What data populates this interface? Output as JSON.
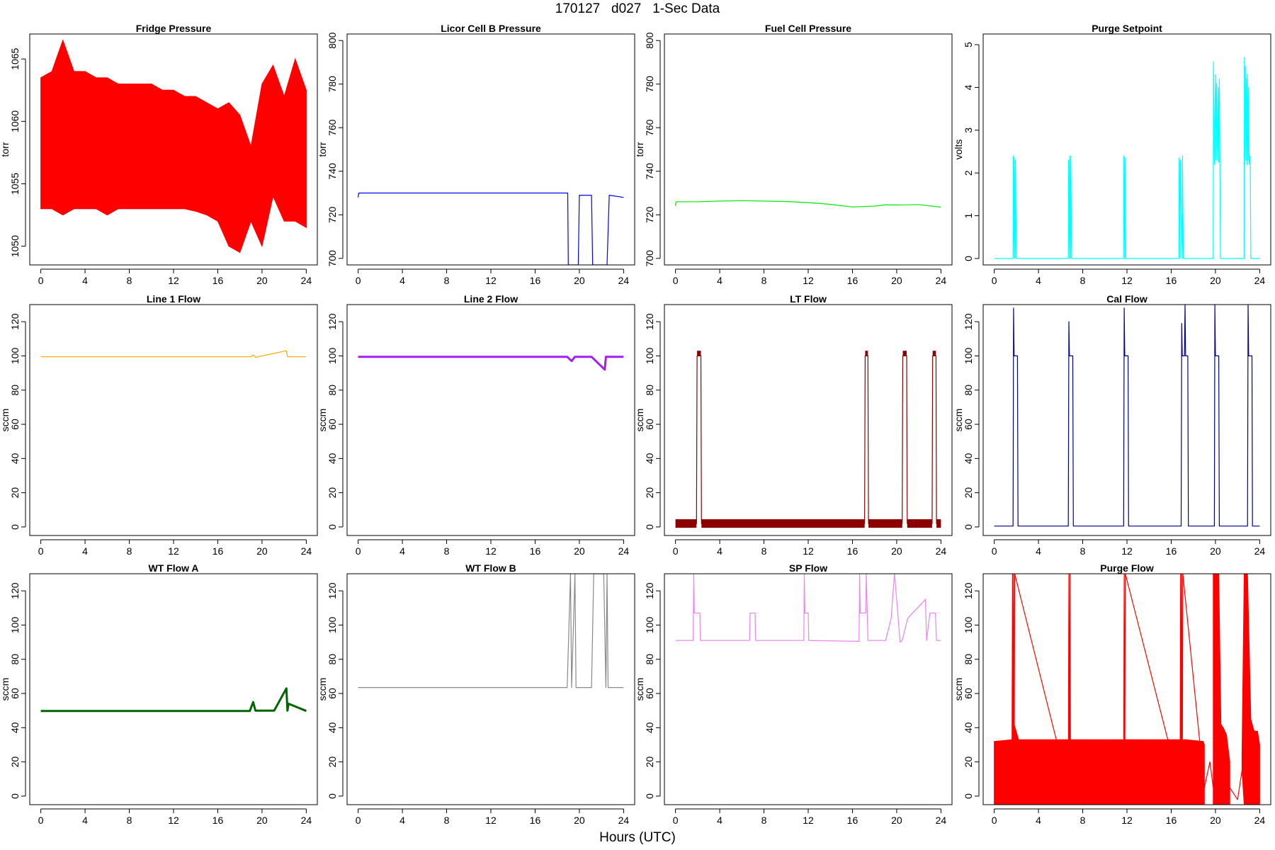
{
  "page": {
    "title": "170127   d027   1-Sec Data",
    "xlabel": "Hours (UTC)"
  },
  "chart_data": [
    {
      "type": "line",
      "title": "Fridge Pressure",
      "xlabel": "",
      "ylabel": "torr",
      "color": "#ff0000",
      "xlim": [
        -1,
        25
      ],
      "ylim": [
        1048.5,
        1067
      ],
      "xticks": [
        0,
        4,
        8,
        12,
        16,
        20,
        24
      ],
      "yticks": [
        1050,
        1055,
        1060,
        1065
      ],
      "series": [
        {
          "style": "band",
          "x": [
            0.0,
            1,
            2,
            3,
            4,
            5,
            6,
            7,
            8,
            9,
            10,
            11,
            12,
            13,
            14,
            15,
            16,
            17,
            18,
            19,
            20,
            21,
            22,
            23,
            24
          ],
          "ymin": [
            1053,
            1053,
            1052.5,
            1053,
            1053,
            1053,
            1052.5,
            1053,
            1053,
            1053,
            1053,
            1053,
            1053,
            1053,
            1052.8,
            1052.5,
            1052,
            1050,
            1049.5,
            1052,
            1050,
            1054,
            1052,
            1052,
            1051.5
          ],
          "ymax": [
            1063.5,
            1064,
            1066.5,
            1064,
            1064,
            1063.5,
            1063.5,
            1063,
            1063,
            1063,
            1063,
            1062.5,
            1062.5,
            1062,
            1062,
            1061.5,
            1061,
            1061.5,
            1060.5,
            1058,
            1063,
            1064.5,
            1062,
            1065,
            1062.5
          ]
        }
      ]
    },
    {
      "type": "line",
      "title": "Licor Cell B Pressure",
      "xlabel": "",
      "ylabel": "torr",
      "color": "#0000ff",
      "xlim": [
        -1,
        25
      ],
      "ylim": [
        697,
        803
      ],
      "xticks": [
        0,
        4,
        8,
        12,
        16,
        20,
        24
      ],
      "yticks": [
        700,
        720,
        740,
        760,
        780,
        800
      ],
      "series": [
        {
          "style": "line",
          "x": [
            0,
            0.05,
            18.95,
            19.0,
            19.05,
            19.9,
            20.0,
            21.1,
            21.2,
            21.3,
            22.5,
            22.7,
            24.0
          ],
          "y": [
            728,
            730,
            730,
            697,
            697,
            697,
            729,
            729,
            697,
            697,
            697,
            729,
            728
          ]
        }
      ]
    },
    {
      "type": "line",
      "title": "Fuel Cell Pressure",
      "xlabel": "",
      "ylabel": "torr",
      "color": "#00ee00",
      "xlim": [
        -1,
        25
      ],
      "ylim": [
        697,
        803
      ],
      "xticks": [
        0,
        4,
        8,
        12,
        16,
        20,
        24
      ],
      "yticks": [
        700,
        720,
        740,
        760,
        780,
        800
      ],
      "series": [
        {
          "style": "line",
          "x": [
            0,
            0.05,
            2,
            4,
            6,
            8,
            10,
            12,
            14,
            16,
            18,
            19,
            20,
            22,
            24
          ],
          "y": [
            724,
            726,
            726,
            726.3,
            726.5,
            726.3,
            726.1,
            725.6,
            724.8,
            723.6,
            724,
            724.6,
            724.5,
            724.7,
            723.5
          ]
        }
      ]
    },
    {
      "type": "line",
      "title": "Purge Setpoint",
      "xlabel": "",
      "ylabel": "volts",
      "color": "#00ffff",
      "xlim": [
        -1,
        25
      ],
      "ylim": [
        -0.15,
        5.25
      ],
      "xticks": [
        0,
        4,
        8,
        12,
        16,
        20,
        24
      ],
      "yticks": [
        0,
        1,
        2,
        3,
        4,
        5
      ],
      "series": [
        {
          "style": "line",
          "x": [
            0,
            1.7,
            1.72,
            1.8,
            1.82,
            1.9,
            1.92,
            2.0,
            2.02,
            6.7,
            6.72,
            6.8,
            6.82,
            6.9,
            6.92,
            7.0,
            7.02,
            11.7,
            11.72,
            11.8,
            11.82,
            11.9,
            11.92,
            16.7,
            16.72,
            16.8,
            16.82,
            17.0,
            17.02,
            17.1,
            17.12,
            19.8,
            19.82,
            19.9,
            20.0,
            20.05,
            20.1,
            20.2,
            20.25,
            20.3,
            20.35,
            20.4,
            20.45,
            22.6,
            22.62,
            22.65,
            22.7,
            22.75,
            22.8,
            22.85,
            22.9,
            22.95,
            23.0,
            23.05,
            23.1,
            23.15,
            23.2,
            24.0
          ],
          "y": [
            0,
            0,
            2.4,
            0,
            2.35,
            0,
            2.3,
            0,
            0,
            0,
            2.3,
            0,
            2.4,
            0,
            2.4,
            0,
            0,
            0,
            2.4,
            0,
            2.35,
            0,
            0,
            0,
            2.35,
            0,
            2.3,
            0,
            2.4,
            0,
            0,
            0,
            4.6,
            2.2,
            4.3,
            2.3,
            4.1,
            2.3,
            4.0,
            2.25,
            4.2,
            2.3,
            0,
            0,
            4.7,
            2.2,
            4.5,
            2.3,
            4.2,
            2.2,
            4.3,
            2.3,
            4.0,
            2.2,
            2.4,
            2.2,
            0,
            0
          ]
        }
      ]
    },
    {
      "type": "line",
      "title": "Line 1 Flow",
      "xlabel": "",
      "ylabel": "sccm",
      "color": "#ffa500",
      "xlim": [
        -1,
        25
      ],
      "ylim": [
        -5,
        130
      ],
      "xticks": [
        0,
        4,
        8,
        12,
        16,
        20,
        24
      ],
      "yticks": [
        0,
        20,
        40,
        60,
        80,
        100,
        120
      ],
      "series": [
        {
          "style": "line",
          "x": [
            0,
            19.0,
            19.2,
            19.4,
            22.2,
            22.3,
            24
          ],
          "y": [
            99.5,
            99.5,
            100.5,
            99.2,
            103,
            99.5,
            99.5
          ]
        }
      ]
    },
    {
      "type": "line",
      "title": "Line 2 Flow",
      "xlabel": "",
      "ylabel": "sccm",
      "color": "#a020f0",
      "xlabel2": "",
      "xlim": [
        -1,
        25
      ],
      "ylim": [
        -5,
        130
      ],
      "xticks": [
        0,
        4,
        8,
        12,
        16,
        20,
        24
      ],
      "yticks": [
        0,
        20,
        40,
        60,
        80,
        100,
        120
      ],
      "series": [
        {
          "style": "line",
          "x": [
            0,
            18.9,
            19.3,
            19.6,
            20.0,
            21.1,
            22.3,
            22.4,
            24
          ],
          "y": [
            99.5,
            99.5,
            97,
            99.5,
            99.5,
            99.5,
            92,
            99.5,
            99.5
          ]
        }
      ]
    },
    {
      "type": "line",
      "title": "LT Flow",
      "xlabel": "",
      "ylabel": "sccm",
      "color": "#8b0000",
      "xlim": [
        -1,
        25
      ],
      "ylim": [
        -5,
        130
      ],
      "xticks": [
        0,
        4,
        8,
        12,
        16,
        20,
        24
      ],
      "yticks": [
        0,
        20,
        40,
        60,
        80,
        100,
        120
      ],
      "series": [
        {
          "style": "line",
          "x": [
            0,
            1.9,
            1.95,
            2.3,
            2.35,
            17.1,
            17.15,
            17.4,
            17.45,
            20.5,
            20.55,
            20.9,
            20.95,
            23.2,
            23.25,
            23.55,
            23.6,
            24
          ],
          "y": [
            2,
            2,
            100,
            100,
            2,
            2,
            100,
            100,
            2,
            2,
            100,
            100,
            2,
            2,
            100,
            100,
            2,
            2
          ]
        }
      ]
    },
    {
      "type": "line",
      "title": "Cal Flow",
      "xlabel": "",
      "ylabel": "sccm",
      "color": "#00008b",
      "xlim": [
        -1,
        25
      ],
      "ylim": [
        -5,
        130
      ],
      "xticks": [
        0,
        4,
        8,
        12,
        16,
        20,
        24
      ],
      "yticks": [
        0,
        20,
        40,
        60,
        80,
        100,
        120
      ],
      "series": [
        {
          "style": "line",
          "x": [
            0,
            1.7,
            1.75,
            1.8,
            2.1,
            2.15,
            6.7,
            6.75,
            6.8,
            7.1,
            7.15,
            11.7,
            11.75,
            11.8,
            12.1,
            12.15,
            16.9,
            16.95,
            17.0,
            17.2,
            17.25,
            17.3,
            17.5,
            17.55,
            19.9,
            19.95,
            20.0,
            20.3,
            20.35,
            22.9,
            22.95,
            23.0,
            23.3,
            23.35,
            24
          ],
          "y": [
            0.5,
            0.5,
            128,
            100,
            100,
            0.5,
            0.5,
            120,
            100,
            100,
            0.5,
            0.5,
            128,
            100,
            100,
            0.5,
            0.5,
            119,
            100,
            100,
            130,
            100,
            100,
            0.5,
            0.5,
            130,
            100,
            100,
            0.5,
            0.5,
            130,
            100,
            100,
            0.5,
            0.5
          ]
        }
      ]
    },
    {
      "type": "line",
      "title": "WT Flow A",
      "xlabel": "",
      "ylabel": "sccm",
      "color": "#006400",
      "xlim": [
        -1,
        25
      ],
      "ylim": [
        -5,
        130
      ],
      "xticks": [
        0,
        4,
        8,
        12,
        16,
        20,
        24
      ],
      "yticks": [
        0,
        20,
        40,
        60,
        80,
        100,
        120
      ],
      "series": [
        {
          "style": "line",
          "x": [
            0,
            18.9,
            19.2,
            19.4,
            20.2,
            21.1,
            22.2,
            22.3,
            22.4,
            24
          ],
          "y": [
            49.8,
            49.8,
            55,
            50,
            50,
            50,
            63,
            50,
            54,
            49.8
          ]
        }
      ]
    },
    {
      "type": "line",
      "title": "WT Flow B",
      "xlabel": "",
      "ylabel": "sccm",
      "color": "#888888",
      "xlim": [
        -1,
        25
      ],
      "ylim": [
        -5,
        130
      ],
      "xticks": [
        0,
        4,
        8,
        12,
        16,
        20,
        24
      ],
      "yticks": [
        0,
        20,
        40,
        60,
        80,
        100,
        120
      ],
      "series": [
        {
          "style": "line",
          "x": [
            0,
            18.9,
            19.2,
            19.3,
            19.6,
            19.7,
            21.1,
            21.3,
            22.2,
            22.4,
            22.5,
            22.6,
            22.7,
            24
          ],
          "y": [
            63.5,
            63.5,
            130,
            63.5,
            130,
            63.5,
            63.5,
            130,
            130,
            63.5,
            130,
            63.5,
            63.5,
            63.5
          ]
        }
      ]
    },
    {
      "type": "line",
      "title": "SP Flow",
      "xlabel": "",
      "ylabel": "sccm",
      "color": "#ee82ee",
      "xlim": [
        -1,
        25
      ],
      "ylim": [
        -5,
        130
      ],
      "xticks": [
        0,
        4,
        8,
        12,
        16,
        20,
        24
      ],
      "yticks": [
        0,
        20,
        40,
        60,
        80,
        100,
        120
      ],
      "series": [
        {
          "style": "line",
          "x": [
            0,
            1.6,
            1.65,
            1.7,
            2.2,
            2.25,
            6.7,
            6.75,
            6.8,
            7.2,
            7.25,
            11.6,
            11.65,
            11.7,
            12.0,
            12.05,
            16.6,
            16.65,
            16.7,
            17.2,
            17.25,
            17.4,
            19.0,
            19.5,
            19.8,
            20.1,
            20.3,
            20.5,
            21.0,
            22.6,
            22.7,
            23.0,
            23.5,
            23.6,
            24
          ],
          "y": [
            91,
            91,
            130,
            107,
            107,
            91,
            91,
            107,
            107,
            107,
            91,
            91,
            130,
            107,
            107,
            91,
            90.5,
            130,
            107,
            107,
            130,
            91,
            91,
            104,
            130,
            107,
            90,
            91,
            104,
            115,
            91,
            107,
            107,
            91,
            91
          ]
        }
      ]
    },
    {
      "type": "line",
      "title": "Purge Flow",
      "xlabel": "",
      "ylabel": "sccm",
      "color": "#ff0000",
      "xlim": [
        -1,
        25
      ],
      "ylim": [
        -5,
        130
      ],
      "xticks": [
        0,
        4,
        8,
        12,
        16,
        20,
        24
      ],
      "yticks": [
        0,
        20,
        40,
        60,
        80,
        100,
        120
      ],
      "series": [
        {
          "style": "band",
          "x": [
            0,
            1.6,
            1.8,
            2.2,
            6.5,
            7.2,
            11.5,
            12.2,
            16.5,
            17.3,
            18.9,
            19.0
          ],
          "ymin": [
            -5,
            -5,
            -5,
            -5,
            -5,
            -5,
            -5,
            -5,
            -5,
            -5,
            -5,
            -5
          ],
          "ymax": [
            32,
            33,
            42,
            33,
            33,
            33,
            33,
            33,
            33,
            33,
            32,
            30
          ]
        },
        {
          "style": "band",
          "x": [
            19.8,
            20.0,
            20.3,
            20.5,
            20.7,
            21.0,
            21.3
          ],
          "ymin": [
            -5,
            -5,
            -5,
            -5,
            -5,
            -5,
            -5
          ],
          "ymax": [
            130,
            130,
            130,
            42,
            40,
            36,
            20
          ]
        },
        {
          "style": "band",
          "x": [
            22.4,
            22.6,
            22.9,
            23.2,
            23.5,
            23.8,
            24.0
          ],
          "ymin": [
            15,
            -5,
            -5,
            -5,
            -5,
            -5,
            -5
          ],
          "ymax": [
            25,
            130,
            130,
            45,
            38,
            38,
            30
          ]
        },
        {
          "style": "line",
          "x": [
            1.6,
            1.65,
            1.7,
            1.75,
            1.8,
            1.85,
            6.7,
            6.75,
            6.8,
            6.85,
            6.9,
            11.7,
            11.75,
            11.8,
            11.85,
            16.8,
            16.85,
            16.9,
            16.95,
            17.0,
            17.05,
            19.0,
            19.5,
            19.8,
            21.3,
            22.0,
            22.4
          ],
          "y": [
            5,
            130,
            5,
            130,
            5,
            130,
            5,
            130,
            5,
            130,
            5,
            5,
            130,
            5,
            130,
            5,
            130,
            5,
            130,
            5,
            130,
            5,
            20,
            5,
            5,
            -2,
            15
          ]
        }
      ]
    }
  ]
}
